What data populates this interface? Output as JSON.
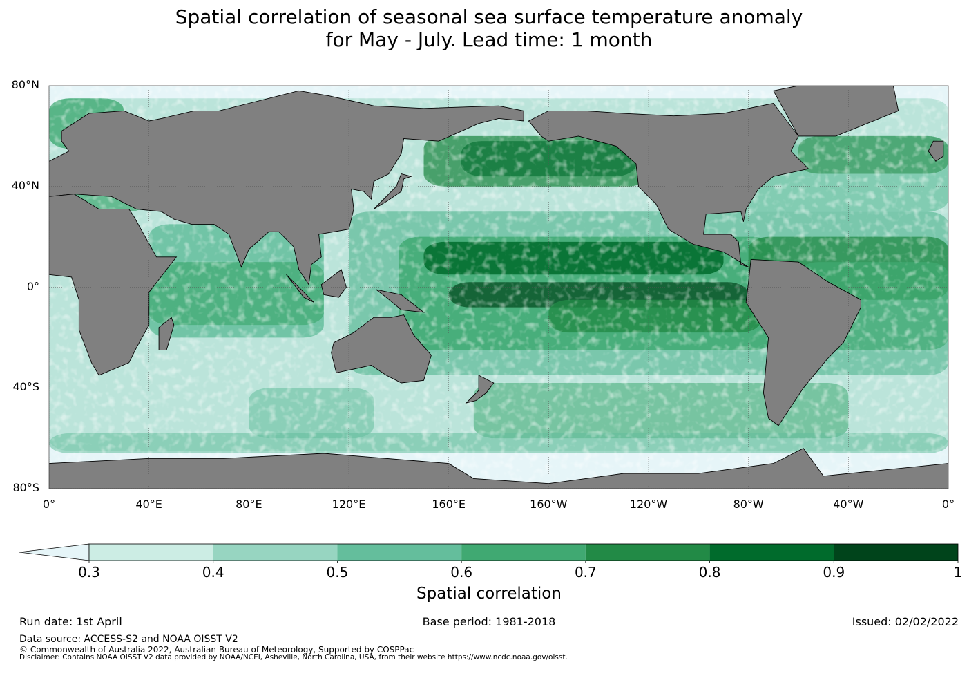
{
  "title": {
    "line1": "Spatial correlation of seasonal sea surface temperature anomaly",
    "line2": "for May - July. Lead time: 1 month"
  },
  "axes": {
    "lat_labels": [
      "80°N",
      "40°N",
      "0°",
      "40°S",
      "80°S"
    ],
    "lat_values": [
      80,
      40,
      0,
      -40,
      -80
    ],
    "lon_labels": [
      "0°",
      "40°E",
      "80°E",
      "120°E",
      "160°E",
      "160°W",
      "120°W",
      "80°W",
      "40°W",
      "0°"
    ],
    "lon_values": [
      0,
      40,
      80,
      120,
      160,
      200,
      240,
      280,
      320,
      360
    ]
  },
  "colorbar": {
    "title": "Spatial correlation",
    "ticks": [
      "0.3",
      "0.4",
      "0.5",
      "0.6",
      "0.7",
      "0.8",
      "0.9",
      "1"
    ],
    "tick_values": [
      0.3,
      0.4,
      0.5,
      0.6,
      0.7,
      0.8,
      0.9,
      1.0
    ],
    "colors": [
      "#ccede4",
      "#97d5c1",
      "#64be9c",
      "#40a972",
      "#228a46",
      "#006b2c",
      "#00441b"
    ],
    "under_color": "#e6f5f8"
  },
  "colors": {
    "land": "#808080",
    "ocean_low": "#e6f5f8",
    "coast": "#000000"
  },
  "info": {
    "run_date": "Run date: 1st April",
    "base_period": "Base period: 1981-2018",
    "issued": "Issued: 02/02/2022"
  },
  "footer": {
    "source": "Data source: ACCESS-S2 and NOAA OISST V2",
    "copyright": "© Commonwealth of Australia 2022, Australian Bureau of Meteorology, Supported by COSPPac",
    "disclaimer": "Disclaimer: Contains NOAA OISST V2 data provided by NOAA/NCEI, Asheville, North Carolina, USA, from their website https://www.ncdc.noaa.gov/oisst."
  }
}
